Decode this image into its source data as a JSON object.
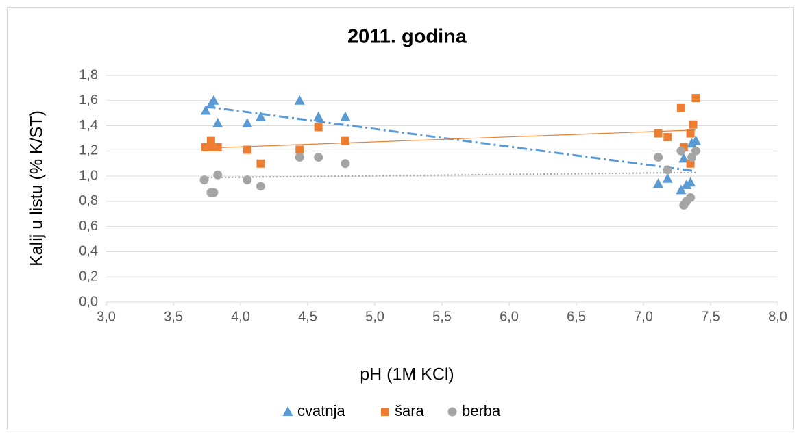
{
  "chart_data": {
    "type": "scatter",
    "title": "2011. godina",
    "x_label": "pH (1M KCl)",
    "y_label": "Kalij u listu (% K/ST)",
    "xlim": [
      3.0,
      8.0
    ],
    "xticks": [
      {
        "value": 3.0,
        "label": "3,0"
      },
      {
        "value": 3.5,
        "label": "3,5"
      },
      {
        "value": 4.0,
        "label": "4,0"
      },
      {
        "value": 4.5,
        "label": "4,5"
      },
      {
        "value": 5.0,
        "label": "5,0"
      },
      {
        "value": 5.5,
        "label": "5,5"
      },
      {
        "value": 6.0,
        "label": "6,0"
      },
      {
        "value": 6.5,
        "label": "6,5"
      },
      {
        "value": 7.0,
        "label": "7,0"
      },
      {
        "value": 7.5,
        "label": "7,5"
      },
      {
        "value": 8.0,
        "label": "8,0"
      }
    ],
    "ylim": [
      0.0,
      1.8
    ],
    "yticks": [
      {
        "value": 0.0,
        "label": "0,0"
      },
      {
        "value": 0.2,
        "label": "0,2"
      },
      {
        "value": 0.4,
        "label": "0,4"
      },
      {
        "value": 0.6,
        "label": "0,6"
      },
      {
        "value": 0.8,
        "label": "0,8"
      },
      {
        "value": 1.0,
        "label": "1,0"
      },
      {
        "value": 1.2,
        "label": "1,2"
      },
      {
        "value": 1.4,
        "label": "1,4"
      },
      {
        "value": 1.6,
        "label": "1,6"
      },
      {
        "value": 1.8,
        "label": "1,8"
      }
    ],
    "grid": true,
    "legend": "bottom",
    "series": [
      {
        "name": "cvatnja",
        "color": "#5b9bd5",
        "marker": "triangle",
        "trendline": "linear",
        "trendline_style": "dash-dot",
        "x": [
          3.74,
          3.78,
          3.8,
          3.83,
          4.05,
          4.15,
          4.44,
          4.58,
          4.78,
          7.11,
          7.18,
          7.28,
          7.3,
          7.32,
          7.35,
          7.36,
          7.39
        ],
        "values": [
          1.52,
          1.57,
          1.6,
          1.42,
          1.42,
          1.47,
          1.6,
          1.47,
          1.47,
          0.94,
          0.98,
          0.89,
          1.14,
          0.93,
          0.95,
          1.26,
          1.28
        ]
      },
      {
        "name": "šara",
        "color": "#ed7d31",
        "marker": "square",
        "trendline": "linear",
        "trendline_style": "solid",
        "x": [
          3.74,
          3.78,
          3.8,
          3.83,
          4.05,
          4.15,
          4.44,
          4.58,
          4.78,
          7.11,
          7.18,
          7.28,
          7.3,
          7.35,
          7.35,
          7.37,
          7.39
        ],
        "values": [
          1.23,
          1.28,
          1.23,
          1.23,
          1.21,
          1.1,
          1.21,
          1.39,
          1.28,
          1.34,
          1.31,
          1.54,
          1.23,
          1.1,
          1.34,
          1.41,
          1.62
        ]
      },
      {
        "name": "berba",
        "color": "#a5a5a5",
        "marker": "circle",
        "trendline": "linear",
        "trendline_style": "dotted",
        "x": [
          3.73,
          3.78,
          3.8,
          3.83,
          4.05,
          4.15,
          4.44,
          4.58,
          4.78,
          7.11,
          7.18,
          7.28,
          7.3,
          7.32,
          7.35,
          7.36,
          7.39
        ],
        "values": [
          0.97,
          0.87,
          0.87,
          1.01,
          0.97,
          0.92,
          1.15,
          1.15,
          1.1,
          1.15,
          1.05,
          1.2,
          0.77,
          0.8,
          0.83,
          1.15,
          1.2
        ]
      }
    ]
  }
}
